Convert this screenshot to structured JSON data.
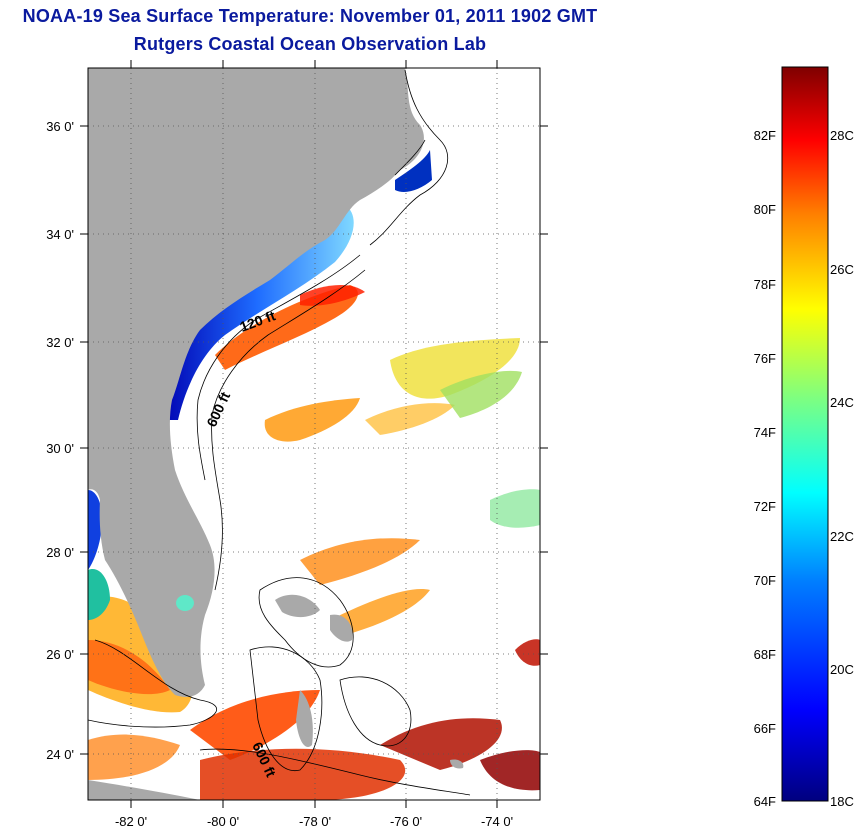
{
  "title": "NOAA-19 Sea Surface Temperature:  November 01, 2011 1902 GMT",
  "subtitle": "Rutgers Coastal Ocean Observation Lab",
  "map": {
    "lat_labels": [
      "36 0'",
      "34 0'",
      "32 0'",
      "30 0'",
      "28 0'",
      "26 0'",
      "24 0'"
    ],
    "lon_labels": [
      "-82 0'",
      "-80 0'",
      "-78 0'",
      "-76 0'",
      "-74 0'"
    ],
    "contour_labels": [
      "120 ft",
      "600 ft",
      "600 ft"
    ],
    "land_color": "#a9a9a9",
    "cloud_color": "#ffffff"
  },
  "colorbar": {
    "fahrenheit_labels": [
      "82F",
      "80F",
      "78F",
      "76F",
      "74F",
      "72F",
      "70F",
      "68F",
      "66F",
      "64F"
    ],
    "celsius_labels": [
      "28C",
      "26C",
      "24C",
      "22C",
      "20C",
      "18C"
    ],
    "colors": [
      "#00007f",
      "#0000ff",
      "#007fff",
      "#00ffff",
      "#7fff7f",
      "#ffff00",
      "#ff7f00",
      "#ff0000",
      "#7f0000"
    ]
  }
}
